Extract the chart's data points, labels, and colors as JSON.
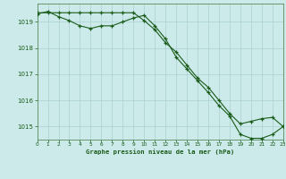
{
  "title": "Graphe pression niveau de la mer (hPa)",
  "background_color": "#cceaea",
  "plot_bg_color": "#cceaea",
  "grid_color": "#aacfcf",
  "line_color": "#1a5c1a",
  "marker_color": "#1a5c1a",
  "hours": [
    0,
    1,
    2,
    3,
    4,
    5,
    6,
    7,
    8,
    9,
    10,
    11,
    12,
    13,
    14,
    15,
    16,
    17,
    18,
    19,
    20,
    21,
    22,
    23
  ],
  "series1": [
    1019.3,
    1019.4,
    1019.2,
    1019.05,
    1018.85,
    1018.75,
    1018.85,
    1018.85,
    1019.0,
    1019.15,
    1019.25,
    1018.85,
    1018.35,
    1017.65,
    1017.2,
    1016.75,
    1016.3,
    1015.8,
    1015.4,
    1014.7,
    1014.55,
    1014.55,
    1014.7,
    1015.0
  ],
  "series2": [
    1019.35,
    1019.35,
    1019.35,
    1019.35,
    1019.35,
    1019.35,
    1019.35,
    1019.35,
    1019.35,
    1019.35,
    1019.05,
    1018.7,
    1018.2,
    1017.85,
    1017.35,
    1016.85,
    1016.5,
    1016.0,
    1015.5,
    1015.1,
    1015.2,
    1015.3,
    1015.35,
    1015.0
  ],
  "ylim": [
    1014.5,
    1019.7
  ],
  "yticks": [
    1015,
    1016,
    1017,
    1018,
    1019
  ],
  "xlim": [
    0,
    23
  ],
  "xtick_labels": [
    "0",
    "1",
    "2",
    "3",
    "4",
    "5",
    "6",
    "7",
    "8",
    "9",
    "10",
    "11",
    "12",
    "13",
    "14",
    "15",
    "16",
    "17",
    "18",
    "19",
    "20",
    "21",
    "22",
    "23"
  ],
  "xticks": [
    0,
    1,
    2,
    3,
    4,
    5,
    6,
    7,
    8,
    9,
    10,
    11,
    12,
    13,
    14,
    15,
    16,
    17,
    18,
    19,
    20,
    21,
    22,
    23
  ]
}
